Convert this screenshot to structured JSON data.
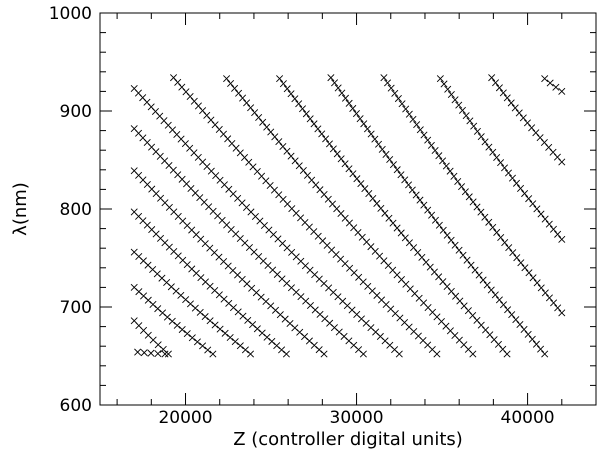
{
  "chart_data": {
    "type": "scatter",
    "xlabel": "Z (controller digital units)",
    "ylabel": "λ(nm)",
    "xlim": [
      15000,
      44000
    ],
    "ylim": [
      600,
      1000
    ],
    "x_major_ticks": [
      20000,
      30000,
      40000
    ],
    "x_minor_step": 2000,
    "y_major_ticks": [
      600,
      700,
      800,
      900,
      1000
    ],
    "y_minor_step": 20,
    "x_tick_labels": [
      "20000",
      "30000",
      "40000"
    ],
    "y_tick_labels": [
      "600",
      "700",
      "800",
      "900",
      "1000"
    ],
    "marker": "cross",
    "grid": false,
    "series": [
      {
        "x": [
          17200,
          18800
        ],
        "y": [
          654,
          652
        ]
      },
      {
        "x": [
          17000,
          19000
        ],
        "y": [
          686,
          652
        ]
      },
      {
        "x": [
          17000,
          21600
        ],
        "y": [
          720,
          652
        ]
      },
      {
        "x": [
          17000,
          23800
        ],
        "y": [
          756,
          652
        ]
      },
      {
        "x": [
          17000,
          25900
        ],
        "y": [
          797,
          652
        ]
      },
      {
        "x": [
          17000,
          28100
        ],
        "y": [
          839,
          652
        ]
      },
      {
        "x": [
          17000,
          30400
        ],
        "y": [
          882,
          652
        ]
      },
      {
        "x": [
          17000,
          32500
        ],
        "y": [
          923,
          652
        ]
      },
      {
        "x": [
          19300,
          34700
        ],
        "y": [
          934,
          652
        ]
      },
      {
        "x": [
          22400,
          36800
        ],
        "y": [
          933,
          652
        ]
      },
      {
        "x": [
          25500,
          38800
        ],
        "y": [
          933,
          652
        ]
      },
      {
        "x": [
          28500,
          41000
        ],
        "y": [
          934,
          652
        ]
      },
      {
        "x": [
          31600,
          42000
        ],
        "y": [
          934,
          694
        ]
      },
      {
        "x": [
          34900,
          42000
        ],
        "y": [
          933,
          769
        ]
      },
      {
        "x": [
          37900,
          42000
        ],
        "y": [
          934,
          848
        ]
      },
      {
        "x": [
          41000,
          42000
        ],
        "y": [
          933,
          920
        ]
      }
    ]
  }
}
